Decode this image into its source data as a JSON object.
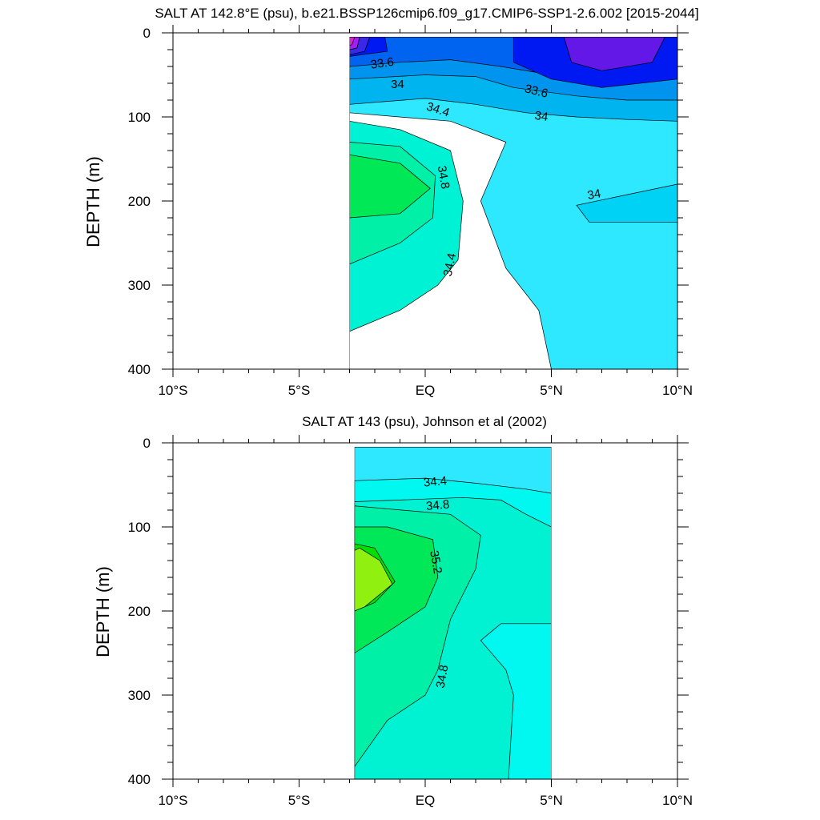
{
  "chart_data": [
    {
      "type": "contour",
      "title": "SALT AT 142.8°E (psu), b.e21.BSSP126cmip6.f09_g17.CMIP6-SSP1-2.6.002 [2015-2044]",
      "ylabel": "DEPTH (m)",
      "xlim": [
        -10,
        10
      ],
      "ylim": [
        400,
        0
      ],
      "data_xrange": [
        -3,
        10
      ],
      "x_ticks": [
        {
          "value": -10,
          "label": "10°S"
        },
        {
          "value": -5,
          "label": "5°S"
        },
        {
          "value": 0,
          "label": "EQ"
        },
        {
          "value": 5,
          "label": "5°N"
        },
        {
          "value": 10,
          "label": "10°N"
        }
      ],
      "y_ticks": [
        {
          "value": 0,
          "label": "0"
        },
        {
          "value": 100,
          "label": "100"
        },
        {
          "value": 200,
          "label": "200"
        },
        {
          "value": 300,
          "label": "300"
        },
        {
          "value": 400,
          "label": "400"
        }
      ],
      "bands": [
        {
          "level": 34.2,
          "color": "#2ee8ff",
          "path": [
            [
              -3,
              400
            ],
            [
              -3,
              5
            ],
            [
              10,
              5
            ],
            [
              10,
              400
            ],
            [
              5,
              400
            ],
            [
              4.5,
              330
            ],
            [
              3.2,
              280
            ],
            [
              2.2,
              200
            ],
            [
              3.2,
              130
            ],
            [
              1,
              105
            ],
            [
              -3,
              95
            ]
          ]
        },
        {
          "level": 34.0,
          "color": "#00d2f5",
          "path": [
            [
              10,
              180
            ],
            [
              6,
              205
            ],
            [
              6.5,
              225
            ],
            [
              10,
              225
            ]
          ]
        },
        {
          "level": 34.6,
          "color": "#00f2d4",
          "path": [
            [
              -3,
              355
            ],
            [
              -1,
              330
            ],
            [
              0.5,
              300
            ],
            [
              1.3,
              270
            ],
            [
              1.5,
              200
            ],
            [
              1,
              140
            ],
            [
              -1,
              115
            ],
            [
              -3,
              105
            ]
          ]
        },
        {
          "level": 34.8,
          "color": "#00f0a8",
          "path": [
            [
              -3,
              275
            ],
            [
              -1,
              250
            ],
            [
              0.3,
              220
            ],
            [
              0.4,
              170
            ],
            [
              -1,
              135
            ],
            [
              -3,
              130
            ]
          ]
        },
        {
          "level": 35.0,
          "color": "#00e856",
          "path": [
            [
              -3,
              220
            ],
            [
              -1,
              215
            ],
            [
              0.2,
              185
            ],
            [
              -1,
              155
            ],
            [
              -3,
              145
            ]
          ]
        },
        {
          "level": 34.0,
          "color": "#00b4ef",
          "path": [
            [
              -3,
              85
            ],
            [
              0,
              78
            ],
            [
              2,
              85
            ],
            [
              4,
              95
            ],
            [
              6,
              100
            ],
            [
              8,
              103
            ],
            [
              10,
              105
            ],
            [
              10,
              5
            ],
            [
              -3,
              5
            ]
          ]
        },
        {
          "level": 33.8,
          "color": "#0094ee",
          "path": [
            [
              -3,
              55
            ],
            [
              0,
              50
            ],
            [
              2,
              52
            ],
            [
              3.5,
              65
            ],
            [
              6,
              75
            ],
            [
              8,
              80
            ],
            [
              10,
              80
            ],
            [
              10,
              5
            ],
            [
              -3,
              5
            ]
          ]
        },
        {
          "level": 33.6,
          "color": "#0064f0",
          "path": [
            [
              -3,
              40
            ],
            [
              -1,
              35
            ],
            [
              1,
              32
            ],
            [
              3,
              40
            ],
            [
              5,
              50
            ],
            [
              7,
              55
            ],
            [
              10,
              55
            ],
            [
              10,
              5
            ],
            [
              -3,
              5
            ]
          ]
        },
        {
          "level": 33.4,
          "color": "#0018f2",
          "path": [
            [
              -3,
              5
            ],
            [
              -1.6,
              5
            ],
            [
              -1.5,
              22
            ],
            [
              -3,
              28
            ]
          ]
        },
        {
          "level": 33.4,
          "color": "#0018f2",
          "path": [
            [
              3.5,
              5
            ],
            [
              10,
              5
            ],
            [
              10,
              55
            ],
            [
              7,
              65
            ],
            [
              5,
              55
            ],
            [
              3.5,
              35
            ]
          ]
        },
        {
          "level": 33.2,
          "color": "#6418e8",
          "path": [
            [
              5.5,
              5
            ],
            [
              9.5,
              5
            ],
            [
              9,
              35
            ],
            [
              7,
              45
            ],
            [
              5.8,
              35
            ]
          ]
        },
        {
          "level": 33.0,
          "color": "#3a28e8",
          "path": [
            [
              -3,
              5
            ],
            [
              -2.2,
              5
            ],
            [
              -2.4,
              22
            ],
            [
              -3,
              26
            ]
          ]
        },
        {
          "level": 32.8,
          "color": "#a020f0",
          "path": [
            [
              -3,
              5
            ],
            [
              -2.6,
              5
            ],
            [
              -2.7,
              18
            ],
            [
              -3,
              20
            ]
          ]
        },
        {
          "level": 32.6,
          "color": "#e020d8",
          "path": [
            [
              -3,
              5
            ],
            [
              -2.8,
              5
            ],
            [
              -2.9,
              14
            ],
            [
              -3,
              15
            ]
          ]
        }
      ],
      "contour_labels": [
        {
          "text": "33.6",
          "x": -1.7,
          "y": 37,
          "angle": -8
        },
        {
          "text": "34",
          "x": -1.1,
          "y": 62,
          "angle": 0
        },
        {
          "text": "33.6",
          "x": 4.4,
          "y": 70,
          "angle": 14
        },
        {
          "text": "34",
          "x": 4.6,
          "y": 100,
          "angle": 8
        },
        {
          "text": "34.4",
          "x": 0.5,
          "y": 92,
          "angle": 18
        },
        {
          "text": "34.8",
          "x": 0.7,
          "y": 172,
          "angle": 80
        },
        {
          "text": "34.4",
          "x": 1.0,
          "y": 276,
          "angle": -78
        },
        {
          "text": "34",
          "x": 6.7,
          "y": 193,
          "angle": -10
        }
      ]
    },
    {
      "type": "contour",
      "title": "SALT AT 143 (psu), Johnson et al (2002)",
      "ylabel": "DEPTH (m)",
      "xlim": [
        -10,
        10
      ],
      "ylim": [
        400,
        0
      ],
      "data_xrange": [
        -2.8,
        5
      ],
      "x_ticks": [
        {
          "value": -10,
          "label": "10°S"
        },
        {
          "value": -5,
          "label": "5°S"
        },
        {
          "value": 0,
          "label": "EQ"
        },
        {
          "value": 5,
          "label": "5°N"
        },
        {
          "value": 10,
          "label": "10°N"
        }
      ],
      "y_ticks": [
        {
          "value": 0,
          "label": "0"
        },
        {
          "value": 100,
          "label": "100"
        },
        {
          "value": 200,
          "label": "200"
        },
        {
          "value": 300,
          "label": "300"
        },
        {
          "value": 400,
          "label": "400"
        }
      ],
      "bands": [
        {
          "level": 34.4,
          "color": "#2ee8ff",
          "path": [
            [
              -2.8,
              5
            ],
            [
              5,
              5
            ],
            [
              5,
              400
            ],
            [
              -2.8,
              400
            ]
          ]
        },
        {
          "level": 34.6,
          "color": "#00f8f0",
          "path": [
            [
              -2.8,
              45
            ],
            [
              0,
              42
            ],
            [
              2,
              48
            ],
            [
              4,
              55
            ],
            [
              5,
              60
            ],
            [
              5,
              400
            ],
            [
              -2.8,
              400
            ]
          ]
        },
        {
          "level": 34.8,
          "color": "#00f2d2",
          "path": [
            [
              -2.8,
              70
            ],
            [
              -1,
              68
            ],
            [
              1.5,
              65
            ],
            [
              3,
              68
            ],
            [
              4,
              85
            ],
            [
              5,
              100
            ],
            [
              5,
              400
            ],
            [
              -2.8,
              400
            ]
          ]
        },
        {
          "level": 34.6,
          "color": "#00f8f0",
          "path": [
            [
              5,
              215
            ],
            [
              3,
              215
            ],
            [
              2.2,
              235
            ],
            [
              3.2,
              270
            ],
            [
              3.5,
              300
            ],
            [
              3.3,
              400
            ],
            [
              5,
              400
            ]
          ]
        },
        {
          "level": 35.0,
          "color": "#00f0a8",
          "path": [
            [
              -2.8,
              385
            ],
            [
              -1.5,
              330
            ],
            [
              0,
              300
            ],
            [
              0.5,
              270
            ],
            [
              1,
              210
            ],
            [
              2,
              150
            ],
            [
              2.2,
              110
            ],
            [
              1,
              85
            ],
            [
              -2.8,
              75
            ]
          ]
        },
        {
          "level": 35.2,
          "color": "#00e858",
          "path": [
            [
              -2.8,
              250
            ],
            [
              -1.5,
              225
            ],
            [
              0,
              195
            ],
            [
              0.5,
              160
            ],
            [
              0.3,
              115
            ],
            [
              -1.5,
              100
            ],
            [
              -2.8,
              100
            ]
          ]
        },
        {
          "level": 35.4,
          "color": "#00e000",
          "path": [
            [
              -2.8,
              200
            ],
            [
              -2,
              190
            ],
            [
              -1.2,
              165
            ],
            [
              -2,
              125
            ],
            [
              -2.8,
              120
            ]
          ]
        },
        {
          "level": 35.6,
          "color": "#90f010",
          "path": [
            [
              -2.8,
              200
            ],
            [
              -2.4,
              195
            ],
            [
              -1.3,
              168
            ],
            [
              -1.8,
              140
            ],
            [
              -2.6,
              125
            ],
            [
              -2.8,
              128
            ]
          ]
        }
      ],
      "contour_labels": [
        {
          "text": "34.4",
          "x": 0.4,
          "y": 47,
          "angle": -5
        },
        {
          "text": "34.8",
          "x": 0.5,
          "y": 75,
          "angle": -5
        },
        {
          "text": "35.2",
          "x": 0.4,
          "y": 142,
          "angle": 80
        },
        {
          "text": "34.8",
          "x": 0.7,
          "y": 278,
          "angle": -80
        }
      ]
    }
  ]
}
